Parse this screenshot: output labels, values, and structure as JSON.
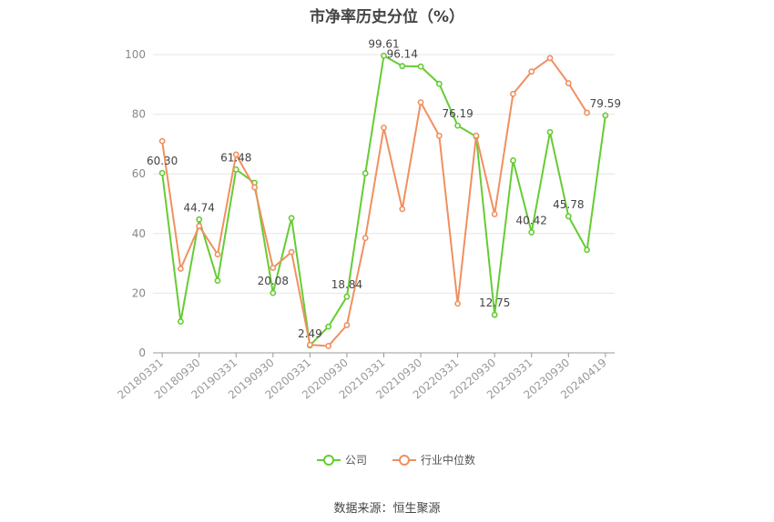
{
  "chart_data": {
    "type": "line",
    "title": "市净率历史分位（%）",
    "source": "数据来源：恒生聚源",
    "ylim": [
      0,
      100
    ],
    "yticks": [
      0,
      20,
      40,
      60,
      80,
      100
    ],
    "grid": true,
    "legend_position": "bottom-center",
    "x_tick_labels": [
      "20180331",
      "20180930",
      "20190331",
      "20190930",
      "20200331",
      "20200930",
      "20210331",
      "20210930",
      "20220331",
      "20220930",
      "20230331",
      "20230930",
      "20240419"
    ],
    "series": [
      {
        "name": "公司",
        "color": "#66cc33",
        "values": [
          60.3,
          10.5,
          44.74,
          24.2,
          61.48,
          57.0,
          20.08,
          45.2,
          2.49,
          8.8,
          18.84,
          60.2,
          99.61,
          96.14,
          96.0,
          90.2,
          76.19,
          72.5,
          12.75,
          64.5,
          40.42,
          74.0,
          45.78,
          34.5,
          79.59
        ]
      },
      {
        "name": "行业中位数",
        "color": "#f09060",
        "values": [
          71.0,
          28.2,
          42.5,
          33.0,
          66.5,
          55.5,
          28.5,
          33.8,
          2.7,
          2.3,
          9.3,
          38.5,
          75.5,
          48.2,
          84.0,
          72.8,
          16.5,
          72.8,
          46.5,
          86.8,
          94.3,
          98.8,
          90.4,
          80.5,
          null
        ]
      }
    ],
    "data_labels": [
      {
        "series": 0,
        "index": 0,
        "text": "60.30"
      },
      {
        "series": 0,
        "index": 2,
        "text": "44.74"
      },
      {
        "series": 0,
        "index": 4,
        "text": "61.48"
      },
      {
        "series": 0,
        "index": 6,
        "text": "20.08"
      },
      {
        "series": 0,
        "index": 8,
        "text": "2.49"
      },
      {
        "series": 0,
        "index": 10,
        "text": "18.84"
      },
      {
        "series": 0,
        "index": 12,
        "text": "99.61"
      },
      {
        "series": 0,
        "index": 13,
        "text": "96.14"
      },
      {
        "series": 0,
        "index": 16,
        "text": "76.19"
      },
      {
        "series": 0,
        "index": 18,
        "text": "12.75"
      },
      {
        "series": 0,
        "index": 20,
        "text": "40.42"
      },
      {
        "series": 0,
        "index": 22,
        "text": "45.78"
      },
      {
        "series": 0,
        "index": 24,
        "text": "79.59"
      }
    ]
  }
}
